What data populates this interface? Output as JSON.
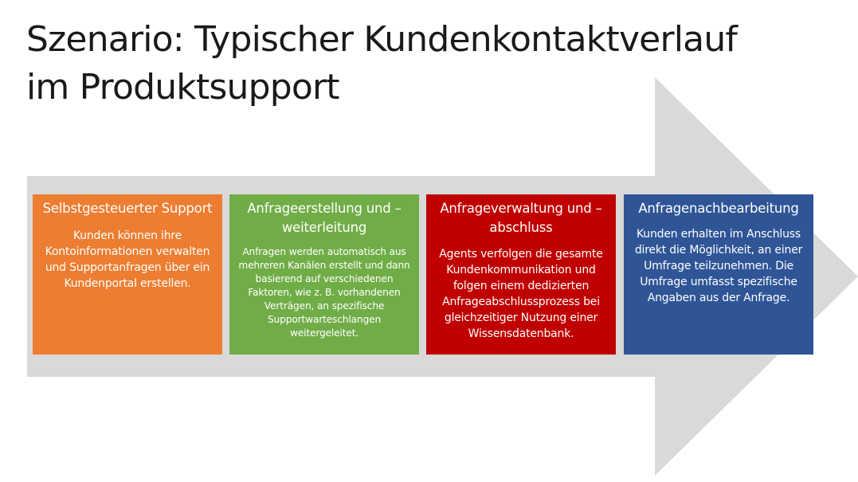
{
  "slide": {
    "title_line1": "Szenario: Typischer Kundenkontaktverlauf",
    "title_line2": "im Produktsupport"
  },
  "colors": {
    "arrow": "#d9d9d9",
    "box1": "#ed7d31",
    "box2": "#70ad47",
    "box3": "#c00000",
    "box4": "#2f5597"
  },
  "steps": [
    {
      "title": "Selbstgesteuerter Support",
      "body": "Kunden können ihre Kontoinformationen verwalten und Supportanfragen über ein Kundenportal erstellen."
    },
    {
      "title": "Anfrageerstellung und –weiterleitung",
      "body": "Anfragen werden automatisch aus mehreren Kanälen erstellt und dann basierend auf verschiedenen Faktoren, wie z. B. vorhandenen Verträgen, an spezifische Supportwarteschlangen weitergeleitet."
    },
    {
      "title": "Anfrageverwaltung und –abschluss",
      "body": "Agents verfolgen die gesamte Kundenkommunikation und folgen einem dedizierten Anfrageabschlussprozess bei gleichzeitiger Nutzung einer Wissensdatenbank."
    },
    {
      "title": "Anfragenachbearbeitung",
      "body": "Kunden erhalten im Anschluss direkt die Möglichkeit, an einer Umfrage teilzunehmen. Die Umfrage umfasst spezifische Angaben aus der Anfrage."
    }
  ]
}
